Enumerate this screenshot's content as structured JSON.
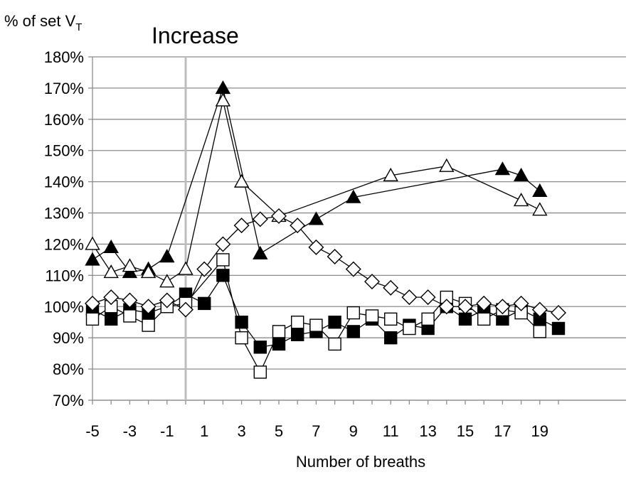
{
  "chart_data": {
    "type": "line",
    "title": "Increase",
    "ylabel_main": "% of set V",
    "ylabel_sub": "T",
    "xlabel": "Number of breaths",
    "xlim": [
      -5,
      20
    ],
    "ylim": [
      0.7,
      1.8
    ],
    "yticks": [
      "70%",
      "80%",
      "90%",
      "100%",
      "110%",
      "120%",
      "130%",
      "140%",
      "150%",
      "160%",
      "170%",
      "180%"
    ],
    "xticks": [
      "-5",
      "-3",
      "-1",
      "1",
      "3",
      "5",
      "7",
      "9",
      "11",
      "13",
      "15",
      "17",
      "19"
    ],
    "event_x": 0,
    "grid": "horizontal",
    "series": [
      {
        "marker": "triangle-filled",
        "points": [
          [
            -5,
            1.15
          ],
          [
            -4,
            1.19
          ],
          [
            -3,
            1.11
          ],
          [
            -2,
            1.12
          ],
          [
            -1,
            1.16
          ],
          [
            2,
            1.7
          ],
          [
            4,
            1.17
          ],
          [
            7,
            1.28
          ],
          [
            9,
            1.35
          ],
          [
            17,
            1.44
          ],
          [
            18,
            1.42
          ],
          [
            19,
            1.37
          ]
        ]
      },
      {
        "marker": "triangle-open",
        "points": [
          [
            -5,
            1.2
          ],
          [
            -4,
            1.11
          ],
          [
            -3,
            1.13
          ],
          [
            -2,
            1.11
          ],
          [
            -1,
            1.08
          ],
          [
            0,
            1.12
          ],
          [
            2,
            1.66
          ],
          [
            3,
            1.4
          ],
          [
            5,
            1.29
          ],
          [
            11,
            1.42
          ],
          [
            14,
            1.45
          ],
          [
            18,
            1.34
          ],
          [
            19,
            1.31
          ]
        ]
      },
      {
        "marker": "square-filled",
        "points": [
          [
            -5,
            0.99
          ],
          [
            -4,
            0.96
          ],
          [
            -3,
            0.99
          ],
          [
            -2,
            0.98
          ],
          [
            -1,
            1.0
          ],
          [
            0,
            1.04
          ],
          [
            1,
            1.01
          ],
          [
            2,
            1.1
          ],
          [
            3,
            0.95
          ],
          [
            4,
            0.87
          ],
          [
            5,
            0.88
          ],
          [
            6,
            0.91
          ],
          [
            7,
            0.92
          ],
          [
            8,
            0.95
          ],
          [
            9,
            0.92
          ],
          [
            10,
            0.96
          ],
          [
            11,
            0.9
          ],
          [
            12,
            0.94
          ],
          [
            13,
            0.93
          ],
          [
            14,
            1.0
          ],
          [
            15,
            0.96
          ],
          [
            16,
            0.99
          ],
          [
            17,
            0.96
          ],
          [
            18,
            0.99
          ],
          [
            19,
            0.96
          ],
          [
            20,
            0.93
          ]
        ]
      },
      {
        "marker": "square-open",
        "points": [
          [
            -5,
            0.96
          ],
          [
            -4,
            1.0
          ],
          [
            -3,
            0.97
          ],
          [
            -2,
            0.94
          ],
          [
            -1,
            1.0
          ],
          [
            0,
            1.01
          ],
          [
            2,
            1.15
          ],
          [
            3,
            0.9
          ],
          [
            4,
            0.79
          ],
          [
            5,
            0.92
          ],
          [
            6,
            0.95
          ],
          [
            7,
            0.94
          ],
          [
            8,
            0.88
          ],
          [
            9,
            0.98
          ],
          [
            10,
            0.97
          ],
          [
            11,
            0.96
          ],
          [
            12,
            0.93
          ],
          [
            13,
            0.96
          ],
          [
            14,
            1.03
          ],
          [
            15,
            1.01
          ],
          [
            16,
            0.96
          ],
          [
            17,
            0.99
          ],
          [
            18,
            0.98
          ],
          [
            19,
            0.92
          ]
        ]
      },
      {
        "marker": "diamond-open",
        "points": [
          [
            -5,
            1.01
          ],
          [
            -4,
            1.03
          ],
          [
            -3,
            1.02
          ],
          [
            -2,
            1.0
          ],
          [
            -1,
            1.02
          ],
          [
            0,
            0.99
          ],
          [
            1,
            1.12
          ],
          [
            2,
            1.2
          ],
          [
            3,
            1.26
          ],
          [
            4,
            1.28
          ],
          [
            5,
            1.29
          ],
          [
            6,
            1.26
          ],
          [
            7,
            1.19
          ],
          [
            8,
            1.16
          ],
          [
            9,
            1.12
          ],
          [
            10,
            1.08
          ],
          [
            11,
            1.06
          ],
          [
            12,
            1.03
          ],
          [
            13,
            1.03
          ],
          [
            14,
            1.0
          ],
          [
            15,
            1.0
          ],
          [
            16,
            1.01
          ],
          [
            17,
            1.0
          ],
          [
            18,
            1.01
          ],
          [
            19,
            0.99
          ],
          [
            20,
            0.98
          ]
        ]
      }
    ]
  }
}
